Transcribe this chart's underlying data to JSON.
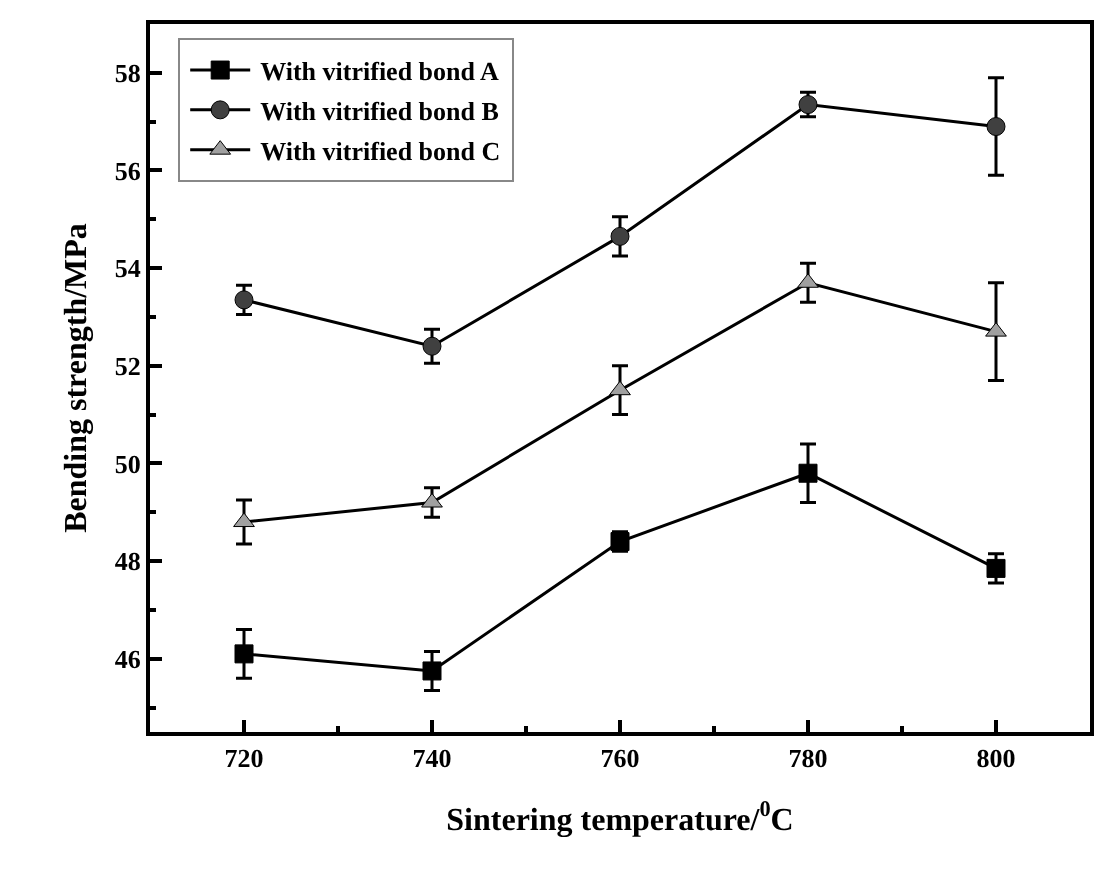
{
  "chart_data": {
    "type": "line",
    "xlabel": "Sintering temperature/$^{0}$C",
    "ylabel": "Bending strength/MPa",
    "x": [
      720,
      740,
      760,
      780,
      800
    ],
    "series": [
      {
        "name": "With vitrified bond A",
        "color": "#000000",
        "marker": "square",
        "values": [
          46.1,
          45.75,
          48.4,
          49.8,
          47.85
        ],
        "errors": [
          0.5,
          0.4,
          0.2,
          0.6,
          0.3
        ]
      },
      {
        "name": "With vitrified bond B",
        "color": "#404040",
        "marker": "circle",
        "values": [
          53.35,
          52.4,
          54.65,
          57.35,
          56.9
        ],
        "errors": [
          0.3,
          0.35,
          0.4,
          0.25,
          1.0
        ]
      },
      {
        "name": "With vitrified bond C",
        "color": "#a0a0a0",
        "marker": "triangle",
        "values": [
          48.8,
          49.2,
          51.5,
          53.7,
          52.7
        ],
        "errors": [
          0.45,
          0.3,
          0.5,
          0.4,
          1.0
        ]
      }
    ],
    "xlim": [
      710,
      810
    ],
    "xticks": [
      720,
      740,
      760,
      780,
      800
    ],
    "ylim": [
      44.5,
      59
    ],
    "yticks": [
      46,
      48,
      50,
      52,
      54,
      56,
      58
    ],
    "legend": "top left",
    "line_style": "solid"
  }
}
